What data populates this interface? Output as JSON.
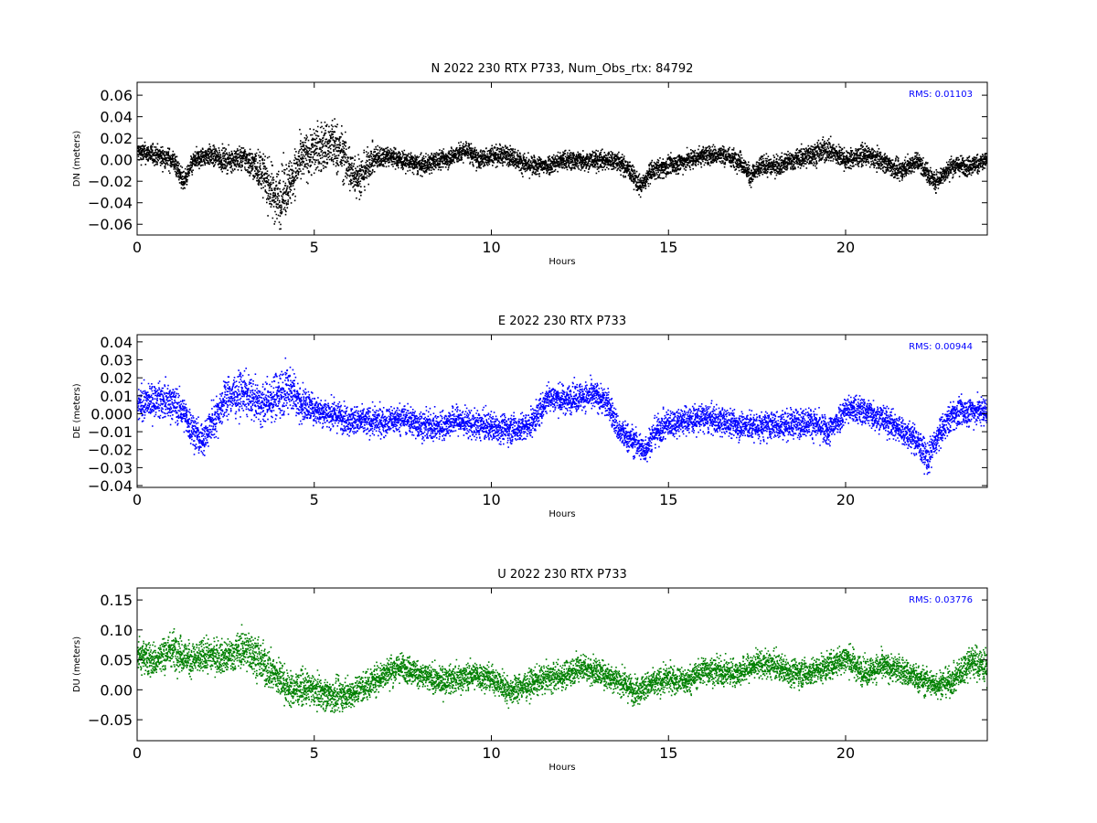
{
  "chart_data": [
    {
      "type": "scatter",
      "title": "N 2022 230 RTX  P733, Num_Obs_rtx: 84792",
      "xlabel": "Hours",
      "ylabel": "DN (meters)",
      "xlim": [
        0,
        24
      ],
      "ylim": [
        -0.07,
        0.072
      ],
      "xticks": [
        0,
        5,
        10,
        15,
        20
      ],
      "xtick_labels": [
        "0",
        "5",
        "10",
        "15",
        "20"
      ],
      "yticks": [
        -0.06,
        -0.04,
        -0.02,
        0.0,
        0.02,
        0.04,
        0.06
      ],
      "ytick_labels": [
        "−0.06",
        "−0.04",
        "−0.02",
        "0.00",
        "0.02",
        "0.04",
        "0.06"
      ],
      "annotation": "RMS:  0.01103",
      "color": "#000000",
      "annotation_color": "#0000ff",
      "num_points": 84792,
      "rms": 0.01103,
      "series": [
        {
          "x": [
            0,
            0.5,
            1,
            1.3,
            1.6,
            2,
            2.5,
            3,
            3.5,
            3.8,
            4,
            4.3,
            4.6,
            5,
            5.5,
            5.8,
            6,
            6.3,
            6.6,
            7,
            7.5,
            8,
            8.5,
            9,
            9.3,
            9.6,
            10,
            10.5,
            11,
            11.5,
            12,
            12.5,
            13,
            13.5,
            13.9,
            14.2,
            14.5,
            15,
            15.5,
            16,
            16.5,
            17,
            17.3,
            17.6,
            18,
            18.5,
            19,
            19.5,
            20,
            20.5,
            21,
            21.5,
            22,
            22.5,
            23,
            23.5,
            24
          ],
          "y": [
            0.008,
            0.005,
            0.0,
            -0.02,
            0.0,
            0.005,
            0.0,
            0.002,
            -0.01,
            -0.03,
            -0.035,
            -0.02,
            0.0,
            0.01,
            0.015,
            0.005,
            -0.01,
            -0.015,
            0.0,
            0.005,
            0.0,
            -0.005,
            0.0,
            0.005,
            0.01,
            0.0,
            0.005,
            0.005,
            -0.005,
            -0.005,
            0.0,
            0.0,
            0.0,
            0.0,
            -0.01,
            -0.025,
            -0.01,
            -0.005,
            0.0,
            0.005,
            0.005,
            0.0,
            -0.015,
            -0.005,
            -0.005,
            0.0,
            0.005,
            0.01,
            0.0,
            0.005,
            0.0,
            -0.01,
            0.0,
            -0.02,
            -0.005,
            -0.005,
            0.0
          ],
          "spread": [
            0.008,
            0.008,
            0.009,
            0.008,
            0.008,
            0.008,
            0.009,
            0.01,
            0.016,
            0.022,
            0.024,
            0.02,
            0.018,
            0.02,
            0.022,
            0.02,
            0.02,
            0.016,
            0.012,
            0.008,
            0.008,
            0.008,
            0.008,
            0.008,
            0.008,
            0.008,
            0.008,
            0.008,
            0.008,
            0.008,
            0.008,
            0.008,
            0.008,
            0.008,
            0.008,
            0.008,
            0.008,
            0.008,
            0.008,
            0.008,
            0.008,
            0.008,
            0.008,
            0.008,
            0.008,
            0.008,
            0.009,
            0.01,
            0.008,
            0.008,
            0.008,
            0.008,
            0.008,
            0.008,
            0.008,
            0.008,
            0.008
          ]
        }
      ]
    },
    {
      "type": "scatter",
      "title": "E 2022 230 RTX  P733",
      "xlabel": "Hours",
      "ylabel": "DE (meters)",
      "xlim": [
        0,
        24
      ],
      "ylim": [
        -0.041,
        0.044
      ],
      "xticks": [
        0,
        5,
        10,
        15,
        20
      ],
      "xtick_labels": [
        "0",
        "5",
        "10",
        "15",
        "20"
      ],
      "yticks": [
        -0.04,
        -0.03,
        -0.02,
        -0.01,
        0.0,
        0.01,
        0.02,
        0.03,
        0.04
      ],
      "ytick_labels": [
        "−0.04",
        "−0.03",
        "−0.02",
        "−0.01",
        "0.000",
        "0.01",
        "0.02",
        "0.03",
        "0.04"
      ],
      "annotation": "RMS:  0.00944",
      "color": "#0000ff",
      "annotation_color": "#0000ff",
      "rms": 0.00944,
      "series": [
        {
          "x": [
            0,
            0.5,
            1,
            1.3,
            1.6,
            1.8,
            2,
            2.5,
            3,
            3.5,
            4,
            4.3,
            4.6,
            5,
            5.5,
            6,
            6.5,
            7,
            7.5,
            8,
            8.5,
            9,
            9.5,
            10,
            10.5,
            11,
            11.3,
            11.6,
            12,
            12.5,
            13,
            13.3,
            13.6,
            14,
            14.3,
            14.6,
            15,
            15.5,
            16,
            16.5,
            17,
            17.5,
            18,
            18.5,
            19,
            19.5,
            20,
            20.5,
            21,
            21.5,
            22,
            22.3,
            22.6,
            23,
            23.5,
            24
          ],
          "y": [
            0.005,
            0.008,
            0.007,
            0.0,
            -0.01,
            -0.015,
            -0.008,
            0.01,
            0.012,
            0.005,
            0.012,
            0.015,
            0.006,
            0.003,
            0.0,
            -0.003,
            -0.004,
            -0.004,
            -0.002,
            -0.006,
            -0.007,
            -0.003,
            -0.006,
            -0.007,
            -0.008,
            -0.007,
            0.0,
            0.01,
            0.008,
            0.01,
            0.01,
            0.005,
            -0.01,
            -0.015,
            -0.02,
            -0.01,
            -0.005,
            -0.003,
            -0.002,
            -0.004,
            -0.006,
            -0.007,
            -0.006,
            -0.005,
            -0.004,
            -0.01,
            0.003,
            0.002,
            -0.002,
            -0.008,
            -0.015,
            -0.025,
            -0.012,
            0.0,
            0.002,
            0.002
          ],
          "spread": [
            0.008,
            0.008,
            0.009,
            0.008,
            0.009,
            0.008,
            0.009,
            0.01,
            0.01,
            0.009,
            0.012,
            0.012,
            0.009,
            0.007,
            0.007,
            0.007,
            0.007,
            0.007,
            0.007,
            0.007,
            0.007,
            0.007,
            0.007,
            0.007,
            0.007,
            0.007,
            0.007,
            0.007,
            0.007,
            0.007,
            0.007,
            0.007,
            0.007,
            0.007,
            0.007,
            0.007,
            0.007,
            0.007,
            0.007,
            0.007,
            0.007,
            0.007,
            0.007,
            0.007,
            0.007,
            0.007,
            0.007,
            0.007,
            0.007,
            0.007,
            0.007,
            0.008,
            0.007,
            0.007,
            0.007,
            0.007
          ]
        }
      ]
    },
    {
      "type": "scatter",
      "title": "U 2022 230 RTX  P733",
      "xlabel": "Hours",
      "ylabel": "DU (meters)",
      "xlim": [
        0,
        24
      ],
      "ylim": [
        -0.085,
        0.17
      ],
      "xticks": [
        0,
        5,
        10,
        15,
        20
      ],
      "xtick_labels": [
        "0",
        "5",
        "10",
        "15",
        "20"
      ],
      "yticks": [
        -0.05,
        0.0,
        0.05,
        0.1,
        0.15
      ],
      "ytick_labels": [
        "−0.05",
        "0.00",
        "0.05",
        "0.10",
        "0.15"
      ],
      "annotation": "RMS:  0.03776",
      "color": "#008000",
      "annotation_color": "#0000ff",
      "rms": 0.03776,
      "series": [
        {
          "x": [
            0,
            0.5,
            1,
            1.5,
            2,
            2.5,
            3,
            3.3,
            3.6,
            4,
            4.3,
            4.6,
            5,
            5.5,
            6,
            6.5,
            7,
            7.5,
            8,
            8.5,
            9,
            9.5,
            10,
            10.5,
            11,
            11.5,
            12,
            12.5,
            13,
            13.5,
            14,
            14.5,
            15,
            15.5,
            16,
            16.5,
            17,
            17.5,
            18,
            18.5,
            19,
            19.5,
            20,
            20.5,
            21,
            21.5,
            22,
            22.5,
            23,
            23.5,
            24
          ],
          "y": [
            0.06,
            0.05,
            0.07,
            0.05,
            0.06,
            0.055,
            0.07,
            0.06,
            0.04,
            0.02,
            0.0,
            0.005,
            0.0,
            -0.01,
            -0.005,
            0.01,
            0.03,
            0.04,
            0.025,
            0.015,
            0.02,
            0.025,
            0.02,
            0.0,
            0.01,
            0.02,
            0.025,
            0.04,
            0.03,
            0.02,
            0.0,
            0.01,
            0.02,
            0.015,
            0.035,
            0.03,
            0.03,
            0.045,
            0.04,
            0.03,
            0.03,
            0.04,
            0.055,
            0.03,
            0.04,
            0.035,
            0.02,
            0.01,
            0.015,
            0.05,
            0.04
          ],
          "spread": [
            0.025,
            0.025,
            0.028,
            0.024,
            0.024,
            0.024,
            0.028,
            0.03,
            0.03,
            0.028,
            0.025,
            0.024,
            0.022,
            0.024,
            0.022,
            0.022,
            0.022,
            0.02,
            0.02,
            0.02,
            0.02,
            0.02,
            0.02,
            0.02,
            0.02,
            0.02,
            0.02,
            0.02,
            0.02,
            0.02,
            0.02,
            0.02,
            0.02,
            0.02,
            0.02,
            0.02,
            0.02,
            0.02,
            0.02,
            0.02,
            0.02,
            0.02,
            0.022,
            0.02,
            0.02,
            0.02,
            0.02,
            0.02,
            0.02,
            0.025,
            0.025
          ]
        }
      ]
    }
  ]
}
